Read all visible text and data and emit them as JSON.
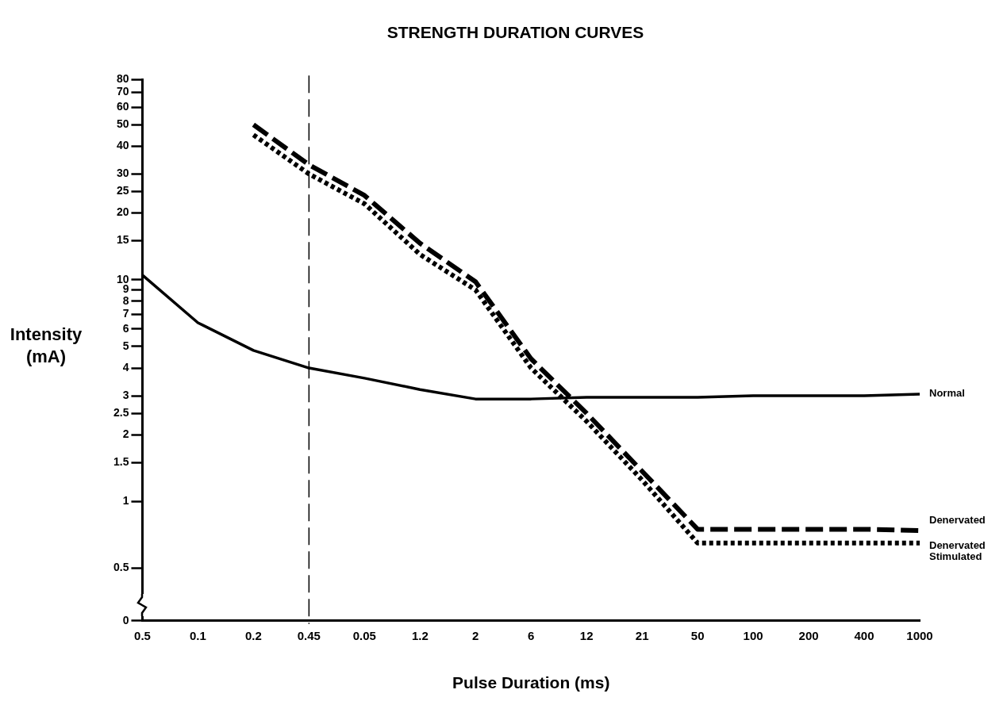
{
  "chart_data": {
    "type": "line",
    "title": "STRENGTH DURATION CURVES",
    "xlabel": "Pulse Duration (ms)",
    "ylabel": "Intensity (mA)",
    "categories": [
      "0.5",
      "0.1",
      "0.2",
      "0.45",
      "0.05",
      "1.2",
      "2",
      "6",
      "12",
      "21",
      "50",
      "100",
      "200",
      "400",
      "1000"
    ],
    "series": [
      {
        "name": "Normal",
        "color": "#000000",
        "line_style": "solid",
        "values": [
          10.5,
          6.4,
          4.8,
          4.0,
          3.6,
          3.2,
          2.9,
          2.9,
          2.95,
          2.95,
          2.95,
          3.0,
          3.0,
          3.0,
          3.05
        ]
      },
      {
        "name": "Denervated",
        "color": "#000000",
        "line_style": "dashed",
        "values": [
          null,
          null,
          50,
          33,
          24,
          14.6,
          9.8,
          4.4,
          2.5,
          1.37,
          0.75,
          0.75,
          0.75,
          0.75,
          0.74
        ]
      },
      {
        "name": "Denervated Stimulated",
        "color": "#000000",
        "line_style": "dotted",
        "values": [
          null,
          null,
          45,
          30,
          22,
          13,
          9,
          4,
          2.3,
          1.25,
          0.65,
          0.65,
          0.65,
          0.65,
          0.65
        ]
      }
    ],
    "log": "y",
    "ylim": [
      0.29,
      80
    ],
    "yticks": [
      {
        "value": 0.29,
        "label": "0"
      },
      0.5,
      1,
      1.5,
      2,
      2.5,
      3,
      4,
      5,
      6,
      7,
      8,
      9,
      10,
      15,
      20,
      25,
      30,
      40,
      50,
      60,
      70,
      80
    ],
    "ref_lines": [
      {
        "axis": "x",
        "value": "0.45",
        "line_style": "dashed"
      }
    ],
    "grid": false,
    "legend": false,
    "marker": "none"
  }
}
